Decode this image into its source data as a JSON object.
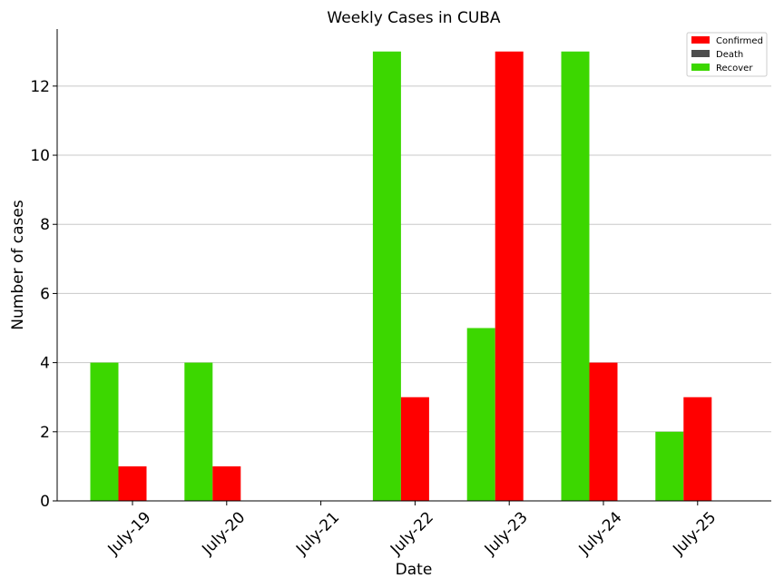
{
  "chart_data": {
    "type": "bar",
    "title": "Weekly Cases in CUBA",
    "xlabel": "Date",
    "ylabel": "Number of cases",
    "categories": [
      "July-19",
      "July-20",
      "July-21",
      "July-22",
      "July-23",
      "July-24",
      "July-25"
    ],
    "series": [
      {
        "name": "Confirmed",
        "color": "#ff0000",
        "values": [
          1,
          1,
          0,
          3,
          13,
          4,
          3
        ]
      },
      {
        "name": "Death",
        "color": "#4d4d4d",
        "values": [
          0,
          0,
          0,
          0,
          0,
          0,
          0
        ]
      },
      {
        "name": "Recover",
        "color": "#3cd700",
        "values": [
          4,
          4,
          0,
          13,
          5,
          13,
          2
        ]
      }
    ],
    "ylim": [
      0,
      13.65
    ],
    "yticks": [
      0,
      2,
      4,
      6,
      8,
      10,
      12
    ],
    "grid": "y",
    "legend_position": "top-right"
  }
}
